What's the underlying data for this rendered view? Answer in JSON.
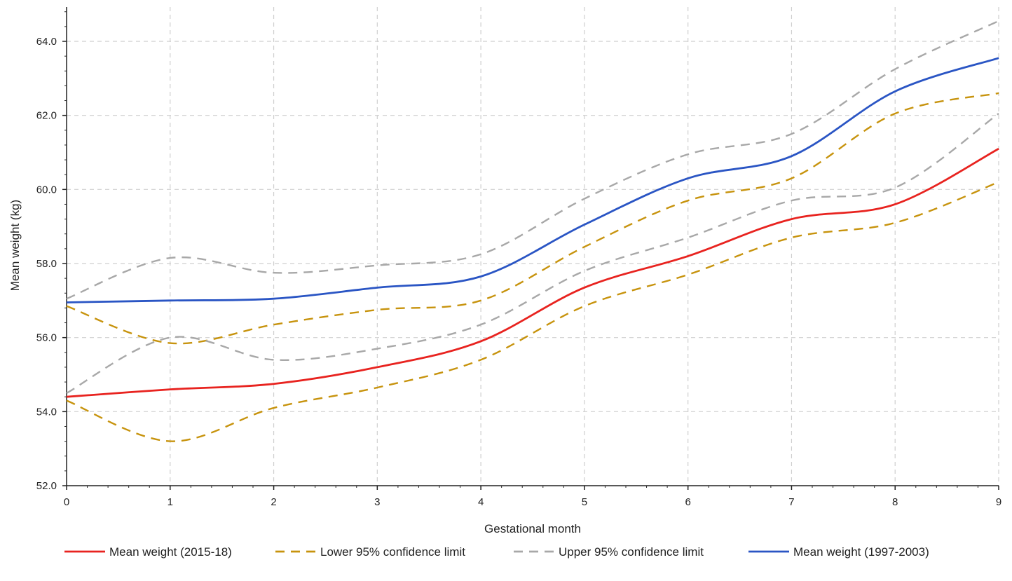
{
  "chart_data": {
    "type": "line",
    "xlabel": "Gestational month",
    "ylabel": "Mean weight (kg)",
    "xlim": [
      0,
      9
    ],
    "ylim": [
      52.0,
      64.0
    ],
    "x_ticks": [
      "0",
      "1",
      "2",
      "3",
      "4",
      "5",
      "6",
      "7",
      "8",
      "9"
    ],
    "y_ticks": [
      "52.0",
      "54.0",
      "56.0",
      "58.0",
      "60.0",
      "62.0",
      "64.0"
    ],
    "grid": true,
    "legend_position": "bottom",
    "x": [
      0,
      1,
      2,
      3,
      4,
      5,
      6,
      7,
      8,
      9
    ],
    "series": [
      {
        "name": "Mean weight (2015-18)",
        "color": "#e8231f",
        "style": "solid",
        "values": [
          54.4,
          54.6,
          54.75,
          55.2,
          55.9,
          57.35,
          58.2,
          59.2,
          59.6,
          61.1
        ]
      },
      {
        "name": "Lower  95% confidence limit",
        "color": "#c7930d",
        "style": "dashed",
        "values": [
          54.3,
          53.2,
          54.1,
          54.65,
          55.4,
          56.85,
          57.7,
          58.7,
          59.1,
          60.2
        ],
        "legend": false
      },
      {
        "name": "Lower  95% confidence limit",
        "color": "#c7930d",
        "style": "dashed",
        "values": [
          56.85,
          55.85,
          56.35,
          56.75,
          57.0,
          58.45,
          59.7,
          60.3,
          62.05,
          62.6
        ]
      },
      {
        "name": "Upper 95% confidence limit",
        "color": "#a8a8a8",
        "style": "dashed",
        "values": [
          54.5,
          56.0,
          55.4,
          55.7,
          56.35,
          57.8,
          58.7,
          59.7,
          60.05,
          62.05
        ],
        "legend": false
      },
      {
        "name": "Upper 95% confidence limit",
        "color": "#a8a8a8",
        "style": "dashed",
        "values": [
          57.05,
          58.15,
          57.75,
          57.95,
          58.25,
          59.75,
          60.95,
          61.5,
          63.25,
          64.55
        ]
      },
      {
        "name": "Mean weight (1997-2003)",
        "color": "#2a55c4",
        "style": "solid",
        "values": [
          56.95,
          57.0,
          57.05,
          57.35,
          57.65,
          59.05,
          60.3,
          60.9,
          62.65,
          63.55
        ]
      }
    ]
  }
}
